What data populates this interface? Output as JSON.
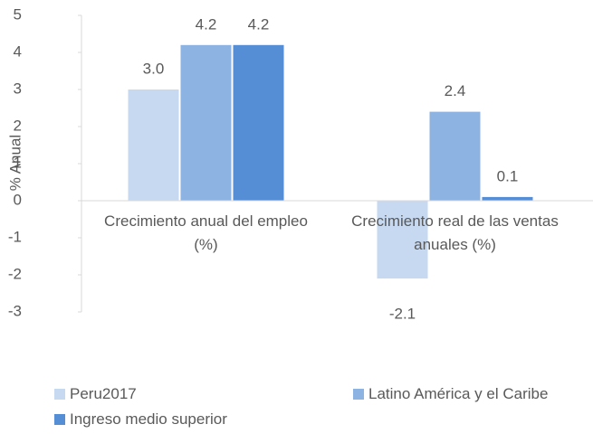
{
  "chart_data": {
    "type": "bar",
    "y_label": "% Anual",
    "categories": [
      "Crecimiento anual del empleo (%)",
      "Crecimiento real de las ventas anuales (%)"
    ],
    "series": [
      {
        "name": "Peru2017",
        "color": "#c6d9f1",
        "values": [
          3.0,
          -2.1
        ],
        "value_labels": [
          "3.0",
          "-2.1"
        ]
      },
      {
        "name": "Latino América y el Caribe",
        "color": "#8db3e2",
        "values": [
          4.2,
          2.4
        ],
        "value_labels": [
          "4.2",
          "2.4"
        ]
      },
      {
        "name": "Ingreso medio superior",
        "color": "#558ed5",
        "values": [
          4.2,
          0.1
        ],
        "value_labels": [
          "4.2",
          "0.1"
        ]
      }
    ],
    "ylim": [
      -3,
      5
    ],
    "yticks": [
      -3,
      -2,
      -1,
      0,
      1,
      2,
      3,
      4,
      5
    ],
    "legend": "bottom"
  }
}
